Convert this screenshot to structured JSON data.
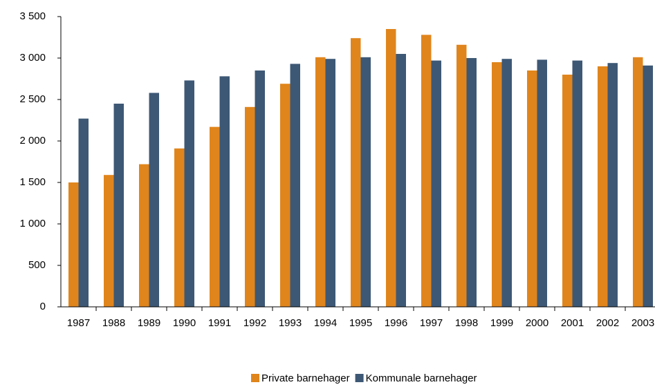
{
  "chart_data": {
    "type": "bar",
    "categories": [
      "1987",
      "1988",
      "1989",
      "1990",
      "1991",
      "1992",
      "1993",
      "1994",
      "1995",
      "1996",
      "1997",
      "1998",
      "1999",
      "2000",
      "2001",
      "2002",
      "2003"
    ],
    "series": [
      {
        "name": "Private barnehager",
        "color": "#e0851c",
        "values": [
          1500,
          1590,
          1720,
          1910,
          2170,
          2410,
          2690,
          3010,
          3240,
          3350,
          3280,
          3160,
          2950,
          2850,
          2800,
          2900,
          3010
        ]
      },
      {
        "name": "Kommunale barnehager",
        "color": "#3d5875",
        "values": [
          2270,
          2450,
          2580,
          2730,
          2780,
          2850,
          2930,
          2990,
          3010,
          3050,
          2970,
          3000,
          2990,
          2980,
          2970,
          2940,
          2910
        ]
      }
    ],
    "ylim": [
      0,
      3500
    ],
    "yticks": [
      0,
      500,
      {
        "value": 1000,
        "label": "1 000"
      },
      {
        "value": 1500,
        "label": "1 500"
      },
      {
        "value": 2000,
        "label": "2 000"
      },
      {
        "value": 2500,
        "label": "2 500"
      },
      {
        "value": 3000,
        "label": "3 000"
      },
      {
        "value": 3500,
        "label": "3 500"
      }
    ],
    "grid": false,
    "legend": "bottom"
  }
}
